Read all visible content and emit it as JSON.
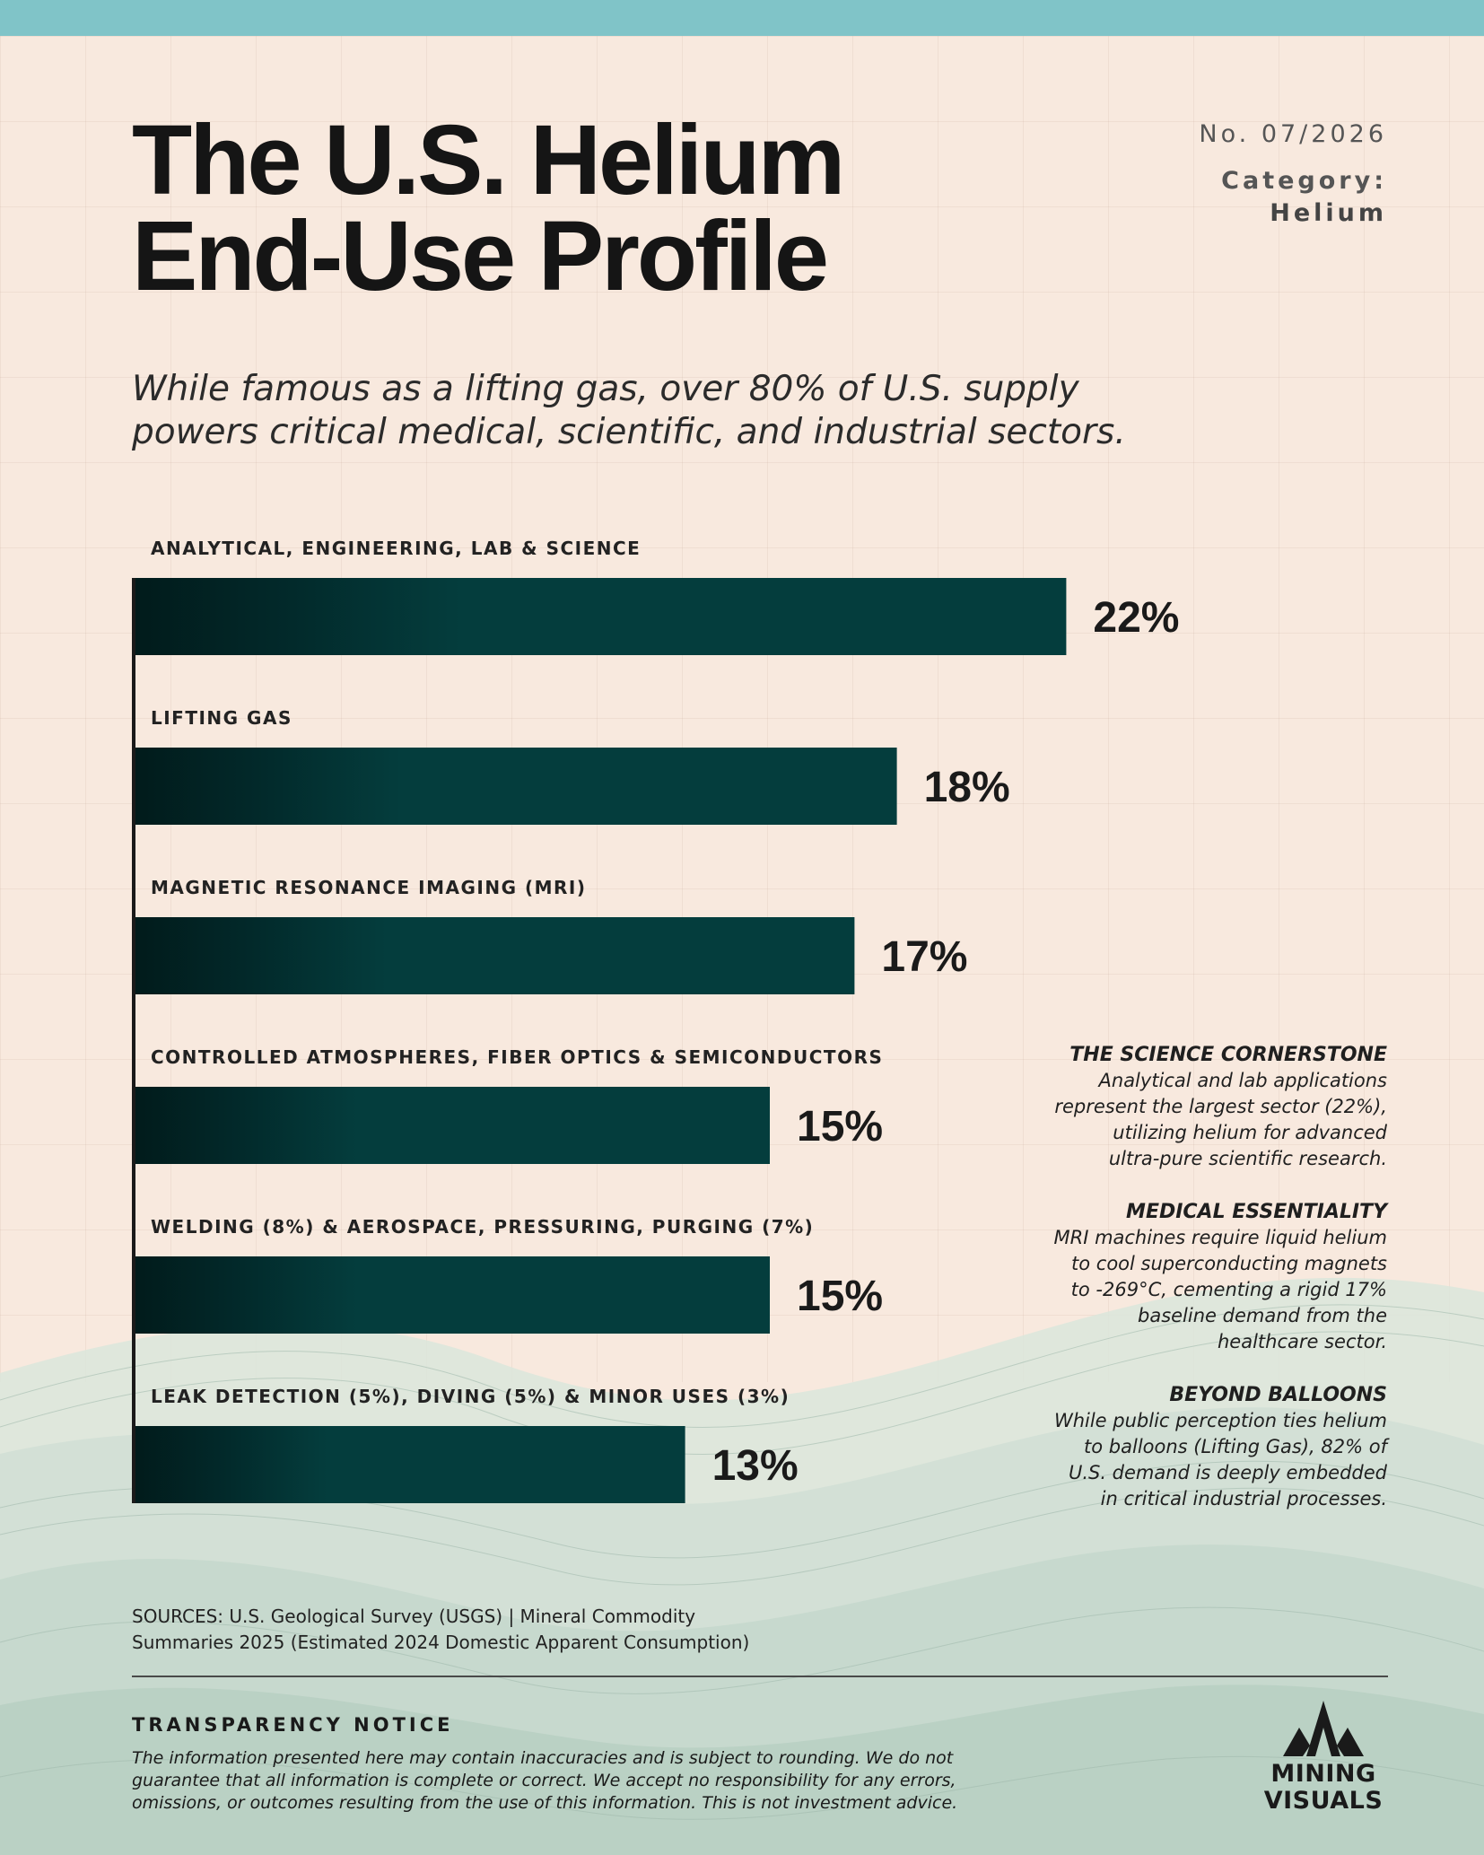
{
  "header": {
    "title_line1": "The U.S. Helium",
    "title_line2": "End-Use Profile",
    "issue": "No. 07/2026",
    "category_label": "Category:",
    "category_value": "Helium",
    "subtitle_line1": "While famous as a lifting gas, over 80% of U.S. supply",
    "subtitle_line2": "powers critical medical, scientific, and industrial sectors."
  },
  "chart_data": {
    "type": "bar",
    "orientation": "horizontal",
    "categories": [
      "ANALYTICAL, ENGINEERING, LAB & SCIENCE",
      "LIFTING GAS",
      "MAGNETIC RESONANCE IMAGING (MRI)",
      "CONTROLLED ATMOSPHERES, FIBER OPTICS & SEMICONDUCTORS",
      "WELDING (8%) & AEROSPACE, PRESSURING, PURGING (7%)",
      "LEAK DETECTION (5%), DIVING (5%) & MINOR USES (3%)"
    ],
    "values": [
      22,
      18,
      17,
      15,
      15,
      13
    ],
    "value_labels": [
      "22%",
      "18%",
      "17%",
      "15%",
      "15%",
      "13%"
    ],
    "unit": "%",
    "bar_color": "#043d3d"
  },
  "notes": [
    {
      "title": "THE SCIENCE CORNERSTONE",
      "lines": [
        "Analytical and lab applications",
        "represent the largest sector (22%),",
        "utilizing helium for advanced",
        "ultra-pure scientific research."
      ]
    },
    {
      "title": "MEDICAL ESSENTIALITY",
      "lines": [
        "MRI machines require liquid helium",
        "to cool superconducting magnets",
        "to -269°C, cementing a rigid 17%",
        "baseline demand from the",
        "healthcare sector."
      ]
    },
    {
      "title": "BEYOND BALLOONS",
      "lines": [
        "While public perception ties helium",
        "to balloons (Lifting Gas), 82% of",
        "U.S. demand is deeply embedded",
        "in critical industrial processes."
      ]
    }
  ],
  "footer": {
    "sources_line1": "SOURCES: U.S. Geological Survey (USGS) | Mineral Commodity",
    "sources_line2": "Summaries 2025 (Estimated 2024 Domestic Apparent Consumption)",
    "notice_title": "TRANSPARENCY NOTICE",
    "notice_line1": "The information presented here may contain inaccuracies and is subject to rounding. We do not",
    "notice_line2": "guarantee that all information is complete or correct. We accept no responsibility for any errors,",
    "notice_line3": "omissions, or outcomes resulting from the use of this information. This is not investment advice.",
    "logo_line1": "MINING",
    "logo_line2": "VISUALS"
  },
  "colors": {
    "background": "#f8e9de",
    "top_bar": "#80c4c8",
    "bar": "#043d3d",
    "bar_dark": "#011b1b",
    "wave": "#d3e1d7"
  }
}
